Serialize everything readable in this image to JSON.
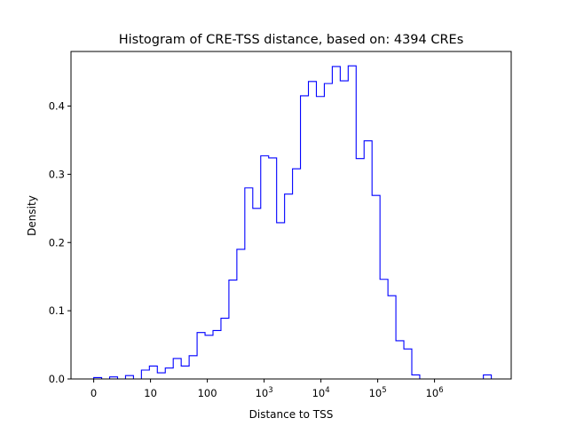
{
  "chart_data": {
    "type": "histogram",
    "title": "Histogram of CRE-TSS distance, based on: 4394 CREs",
    "xlabel": "Distance to TSS",
    "ylabel": "Density",
    "x_scale": "symlog (linear below 10, log10 above)",
    "xlim": [
      -0.4,
      7.35
    ],
    "ylim": [
      0.0,
      0.48
    ],
    "grid": false,
    "line_color": "#0000ff",
    "x_ticks": [
      {
        "value": 0,
        "label": "0"
      },
      {
        "value": 1,
        "label": "10"
      },
      {
        "value": 2,
        "label": "100"
      },
      {
        "value": 3,
        "label": "10",
        "exp": "3"
      },
      {
        "value": 4,
        "label": "10",
        "exp": "4"
      },
      {
        "value": 5,
        "label": "10",
        "exp": "5"
      },
      {
        "value": 6,
        "label": "10",
        "exp": "6"
      }
    ],
    "y_ticks": [
      0.0,
      0.1,
      0.2,
      0.3,
      0.4
    ],
    "bin_edges": [
      0,
      0.14,
      0.28,
      0.42,
      0.56,
      0.7,
      0.84,
      0.98,
      1.12,
      1.26,
      1.4,
      1.54,
      1.68,
      1.82,
      1.96,
      2.1,
      2.24,
      2.38,
      2.52,
      2.66,
      2.8,
      2.94,
      3.08,
      3.22,
      3.36,
      3.5,
      3.64,
      3.78,
      3.92,
      4.06,
      4.2,
      4.34,
      4.48,
      4.62,
      4.76,
      4.9,
      5.04,
      5.18,
      5.32,
      5.46,
      5.6,
      5.74,
      5.88,
      6.02,
      6.16,
      6.3,
      6.44,
      6.58,
      6.72,
      6.86,
      7.0,
      7.14
    ],
    "density": [
      0.002,
      0.0,
      0.003,
      0.0,
      0.005,
      0.0,
      0.013,
      0.019,
      0.009,
      0.016,
      0.03,
      0.019,
      0.034,
      0.068,
      0.064,
      0.071,
      0.089,
      0.145,
      0.19,
      0.28,
      0.25,
      0.327,
      0.324,
      0.229,
      0.271,
      0.308,
      0.415,
      0.436,
      0.414,
      0.433,
      0.458,
      0.437,
      0.459,
      0.323,
      0.349,
      0.269,
      0.146,
      0.122,
      0.056,
      0.044,
      0.006,
      0.0,
      0.0,
      0.0,
      0.0,
      0.0,
      0.0,
      0.0,
      0.0,
      0.006,
      0.0
    ]
  }
}
